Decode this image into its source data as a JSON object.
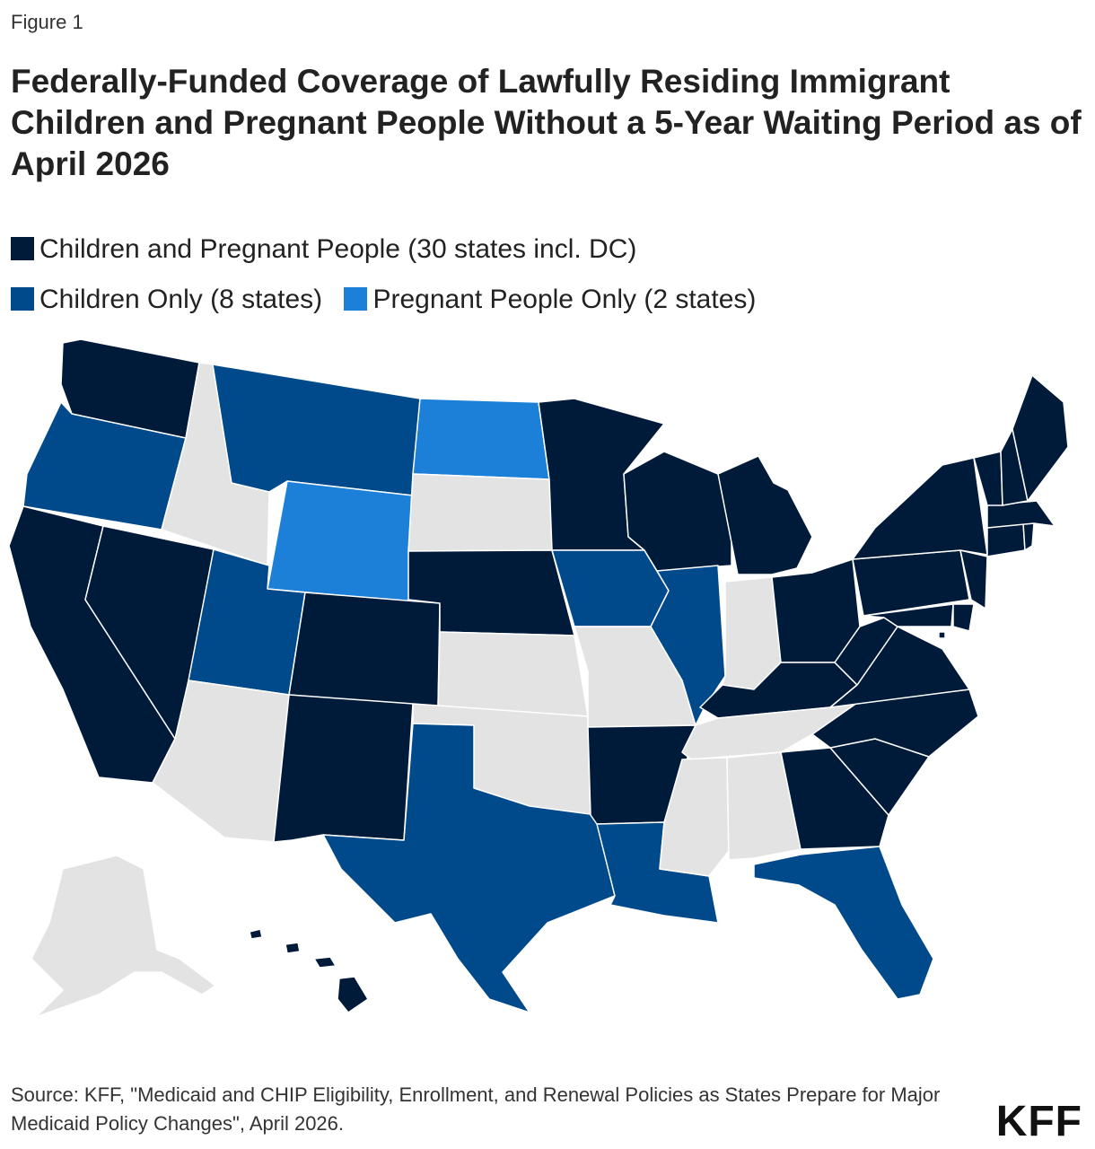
{
  "figure_label": "Figure 1",
  "title": "Federally-Funded Coverage of Lawfully Residing Immigrant Children and Pregnant People Without a 5-Year Waiting Period as of April 2026",
  "legend": [
    {
      "label": "Children and Pregnant People (30 states incl. DC)",
      "color": "#001a3a"
    },
    {
      "label": "Children Only (8 states)",
      "color": "#004a8c"
    },
    {
      "label": "Pregnant People Only (2 states)",
      "color": "#1c80d8"
    }
  ],
  "no_coverage_color": "#e3e3e3",
  "source": "Source: KFF, \"Medicaid and CHIP Eligibility, Enrollment, and Renewal Policies as States Prepare for Major Medicaid Policy Changes\", April 2026.",
  "logo": "KFF",
  "map_data": {
    "categories": {
      "both": "Children and Pregnant People (30 states incl. DC)",
      "children": "Children Only (8 states)",
      "pregnant": "Pregnant People Only (2 states)",
      "none": ""
    },
    "states": {
      "WA": "both",
      "OR": "children",
      "CA": "both",
      "NV": "both",
      "ID": "none",
      "MT": "children",
      "WY": "pregnant",
      "UT": "children",
      "AZ": "none",
      "CO": "both",
      "NM": "both",
      "ND": "pregnant",
      "SD": "none",
      "NE": "both",
      "KS": "none",
      "OK": "none",
      "TX": "children",
      "MN": "both",
      "IA": "children",
      "MO": "none",
      "AR": "both",
      "LA": "children",
      "WI": "both",
      "IL": "children",
      "MI": "both",
      "IN": "none",
      "OH": "both",
      "KY": "both",
      "TN": "none",
      "MS": "none",
      "AL": "none",
      "GA": "both",
      "FL": "children",
      "SC": "both",
      "NC": "both",
      "VA": "both",
      "WV": "both",
      "PA": "both",
      "NY": "both",
      "NJ": "both",
      "DE": "both",
      "MD": "both",
      "DC": "both",
      "CT": "both",
      "RI": "both",
      "MA": "both",
      "VT": "both",
      "NH": "both",
      "ME": "both",
      "AK": "none",
      "HI": "both"
    }
  }
}
